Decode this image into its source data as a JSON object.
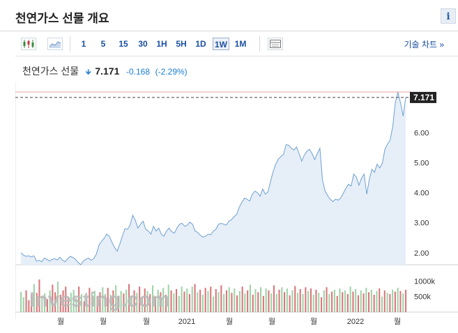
{
  "header": {
    "title": "천연가스 선물 개요",
    "info_icon": "i"
  },
  "toolbar": {
    "chart_type_candle": "candlestick-icon",
    "chart_type_area": "area-chart-icon",
    "timeframes": [
      "1",
      "5",
      "15",
      "30",
      "1H",
      "5H",
      "1D",
      "1W",
      "1M"
    ],
    "active_timeframe": "1W",
    "table_icon": "table-icon",
    "technical_chart_label": "기술 차트 »"
  },
  "quote": {
    "name": "천연가스 선물",
    "direction_icon": "down-arrow-icon",
    "price": "7.171",
    "change": "-0.168",
    "change_pct": "(-2.29%)"
  },
  "colors": {
    "accent": "#1a4fa0",
    "line": "#6fa0d0",
    "area": "#e6eef8",
    "vol_up": "#9fd3a9",
    "vol_down": "#d9767a",
    "high_line": "#e9a0a0"
  },
  "chart_data": {
    "type": "area",
    "x_ticks": [
      "월",
      "월",
      "월",
      "2021",
      "월",
      "월",
      "월",
      "2022",
      "월"
    ],
    "y_ticks": [
      "2.00",
      "3.00",
      "4.00",
      "5.00",
      "6.00"
    ],
    "ylim": [
      1.6,
      7.4
    ],
    "last_value_label": "7.171",
    "volume_ticks": [
      "1000k",
      "500k"
    ],
    "volume_ylim": [
      0,
      1300000
    ],
    "watermark": "Investing.com",
    "series": [
      {
        "values": [
          2.0,
          1.92,
          1.88,
          1.9,
          1.86,
          1.9,
          1.72,
          1.75,
          1.7,
          1.82,
          1.78,
          1.72,
          1.78,
          1.8,
          1.76,
          1.85,
          1.75,
          1.7,
          1.8,
          1.88,
          1.84,
          1.78,
          1.68,
          1.6,
          1.72,
          1.78,
          1.82,
          1.75,
          1.8,
          1.95,
          2.25,
          2.38,
          2.48,
          2.62,
          2.55,
          2.35,
          2.18,
          2.05,
          2.28,
          2.55,
          2.8,
          2.78,
          2.92,
          3.25,
          3.08,
          2.82,
          2.95,
          3.05,
          2.78,
          2.72,
          2.62,
          2.88,
          2.72,
          2.82,
          2.62,
          2.55,
          2.72,
          2.82,
          2.7,
          2.65,
          2.82,
          2.95,
          2.98,
          2.88,
          2.92,
          3.02,
          2.95,
          2.72,
          2.68,
          2.58,
          2.52,
          2.55,
          2.62,
          2.6,
          2.72,
          2.78,
          2.95,
          2.98,
          2.95,
          2.92,
          3.05,
          3.1,
          3.2,
          3.28,
          3.52,
          3.68,
          3.82,
          3.78,
          3.72,
          3.95,
          4.05,
          4.0,
          3.88,
          4.12,
          3.95,
          4.02,
          4.38,
          4.7,
          4.95,
          5.12,
          5.2,
          5.28,
          5.6,
          5.58,
          5.48,
          5.42,
          5.52,
          5.3,
          5.05,
          5.25,
          5.38,
          5.45,
          5.3,
          5.1,
          5.3,
          5.48,
          4.42,
          4.05,
          3.9,
          3.78,
          3.7,
          3.78,
          3.75,
          3.82,
          3.98,
          4.15,
          4.28,
          4.22,
          4.62,
          4.52,
          4.25,
          4.48,
          4.62,
          3.95,
          4.45,
          4.78,
          4.68,
          4.95,
          4.82,
          4.98,
          5.45,
          5.62,
          5.75,
          6.2,
          7.0,
          7.35,
          7.0,
          6.55,
          7.17
        ]
      }
    ],
    "volume": [
      {
        "v": 650000,
        "d": false
      },
      {
        "v": 480000,
        "d": false
      },
      {
        "v": 700000,
        "d": true
      },
      {
        "v": 380000,
        "d": true
      },
      {
        "v": 560000,
        "d": true
      },
      {
        "v": 900000,
        "d": false
      },
      {
        "v": 620000,
        "d": true
      },
      {
        "v": 1050000,
        "d": true
      },
      {
        "v": 520000,
        "d": false
      },
      {
        "v": 600000,
        "d": false
      },
      {
        "v": 420000,
        "d": true
      },
      {
        "v": 700000,
        "d": false
      },
      {
        "v": 880000,
        "d": true
      },
      {
        "v": 640000,
        "d": true
      },
      {
        "v": 980000,
        "d": false
      },
      {
        "v": 560000,
        "d": true
      },
      {
        "v": 700000,
        "d": true
      },
      {
        "v": 820000,
        "d": true
      },
      {
        "v": 480000,
        "d": true
      },
      {
        "v": 620000,
        "d": false
      },
      {
        "v": 720000,
        "d": false
      },
      {
        "v": 450000,
        "d": false
      },
      {
        "v": 820000,
        "d": true
      },
      {
        "v": 580000,
        "d": false
      },
      {
        "v": 350000,
        "d": true
      },
      {
        "v": 500000,
        "d": false
      },
      {
        "v": 780000,
        "d": true
      },
      {
        "v": 600000,
        "d": false
      },
      {
        "v": 680000,
        "d": false
      },
      {
        "v": 520000,
        "d": true
      },
      {
        "v": 640000,
        "d": true
      },
      {
        "v": 800000,
        "d": false
      },
      {
        "v": 580000,
        "d": false
      },
      {
        "v": 780000,
        "d": true
      },
      {
        "v": 560000,
        "d": false
      },
      {
        "v": 700000,
        "d": true
      },
      {
        "v": 860000,
        "d": false
      },
      {
        "v": 520000,
        "d": true
      },
      {
        "v": 680000,
        "d": false
      },
      {
        "v": 600000,
        "d": true
      },
      {
        "v": 720000,
        "d": false
      },
      {
        "v": 900000,
        "d": true
      },
      {
        "v": 540000,
        "d": false
      },
      {
        "v": 700000,
        "d": true
      },
      {
        "v": 620000,
        "d": false
      },
      {
        "v": 820000,
        "d": true
      },
      {
        "v": 460000,
        "d": false
      },
      {
        "v": 760000,
        "d": true
      },
      {
        "v": 680000,
        "d": false
      },
      {
        "v": 580000,
        "d": true
      },
      {
        "v": 860000,
        "d": false
      },
      {
        "v": 500000,
        "d": true
      },
      {
        "v": 720000,
        "d": false
      },
      {
        "v": 640000,
        "d": true
      },
      {
        "v": 780000,
        "d": false
      },
      {
        "v": 560000,
        "d": true
      },
      {
        "v": 880000,
        "d": false
      },
      {
        "v": 700000,
        "d": true
      },
      {
        "v": 600000,
        "d": false
      },
      {
        "v": 740000,
        "d": true
      },
      {
        "v": 520000,
        "d": false
      },
      {
        "v": 820000,
        "d": false
      },
      {
        "v": 660000,
        "d": true
      },
      {
        "v": 760000,
        "d": false
      },
      {
        "v": 580000,
        "d": true
      },
      {
        "v": 820000,
        "d": false
      },
      {
        "v": 900000,
        "d": true
      },
      {
        "v": 640000,
        "d": false
      },
      {
        "v": 720000,
        "d": true
      },
      {
        "v": 560000,
        "d": false
      },
      {
        "v": 780000,
        "d": true
      },
      {
        "v": 680000,
        "d": false
      },
      {
        "v": 820000,
        "d": true
      },
      {
        "v": 500000,
        "d": false
      },
      {
        "v": 740000,
        "d": true
      },
      {
        "v": 640000,
        "d": false
      },
      {
        "v": 860000,
        "d": true
      },
      {
        "v": 580000,
        "d": false
      },
      {
        "v": 700000,
        "d": true
      },
      {
        "v": 800000,
        "d": false
      },
      {
        "v": 620000,
        "d": true
      },
      {
        "v": 760000,
        "d": false
      },
      {
        "v": 540000,
        "d": true
      },
      {
        "v": 680000,
        "d": false
      },
      {
        "v": 820000,
        "d": true
      },
      {
        "v": 600000,
        "d": false
      },
      {
        "v": 700000,
        "d": true
      },
      {
        "v": 880000,
        "d": false
      },
      {
        "v": 560000,
        "d": true
      },
      {
        "v": 740000,
        "d": false
      },
      {
        "v": 640000,
        "d": true
      },
      {
        "v": 800000,
        "d": false
      },
      {
        "v": 520000,
        "d": true
      },
      {
        "v": 760000,
        "d": false
      },
      {
        "v": 700000,
        "d": true
      },
      {
        "v": 600000,
        "d": false
      },
      {
        "v": 860000,
        "d": true
      },
      {
        "v": 580000,
        "d": false
      },
      {
        "v": 720000,
        "d": true
      },
      {
        "v": 800000,
        "d": false
      },
      {
        "v": 640000,
        "d": true
      },
      {
        "v": 760000,
        "d": false
      },
      {
        "v": 540000,
        "d": true
      },
      {
        "v": 700000,
        "d": false
      },
      {
        "v": 840000,
        "d": true
      },
      {
        "v": 620000,
        "d": false
      },
      {
        "v": 740000,
        "d": true
      },
      {
        "v": 580000,
        "d": false
      },
      {
        "v": 800000,
        "d": true
      },
      {
        "v": 680000,
        "d": false
      },
      {
        "v": 760000,
        "d": true
      },
      {
        "v": 560000,
        "d": false
      },
      {
        "v": 720000,
        "d": true
      },
      {
        "v": 620000,
        "d": false
      },
      {
        "v": 480000,
        "d": true
      },
      {
        "v": 700000,
        "d": false
      },
      {
        "v": 800000,
        "d": true
      },
      {
        "v": 580000,
        "d": false
      },
      {
        "v": 660000,
        "d": true
      },
      {
        "v": 720000,
        "d": false
      },
      {
        "v": 520000,
        "d": true
      },
      {
        "v": 760000,
        "d": false
      },
      {
        "v": 640000,
        "d": true
      },
      {
        "v": 700000,
        "d": false
      },
      {
        "v": 580000,
        "d": true
      },
      {
        "v": 820000,
        "d": false
      },
      {
        "v": 660000,
        "d": true
      },
      {
        "v": 740000,
        "d": false
      },
      {
        "v": 540000,
        "d": true
      },
      {
        "v": 700000,
        "d": false
      },
      {
        "v": 600000,
        "d": true
      },
      {
        "v": 780000,
        "d": false
      },
      {
        "v": 640000,
        "d": true
      },
      {
        "v": 720000,
        "d": false
      },
      {
        "v": 560000,
        "d": true
      },
      {
        "v": 680000,
        "d": false
      },
      {
        "v": 760000,
        "d": true
      },
      {
        "v": 500000,
        "d": false
      },
      {
        "v": 700000,
        "d": true
      },
      {
        "v": 620000,
        "d": false
      },
      {
        "v": 580000,
        "d": true
      },
      {
        "v": 720000,
        "d": false
      },
      {
        "v": 660000,
        "d": true
      },
      {
        "v": 780000,
        "d": false
      },
      {
        "v": 680000,
        "d": true
      },
      {
        "v": 600000,
        "d": false
      },
      {
        "v": 720000,
        "d": true
      }
    ]
  }
}
